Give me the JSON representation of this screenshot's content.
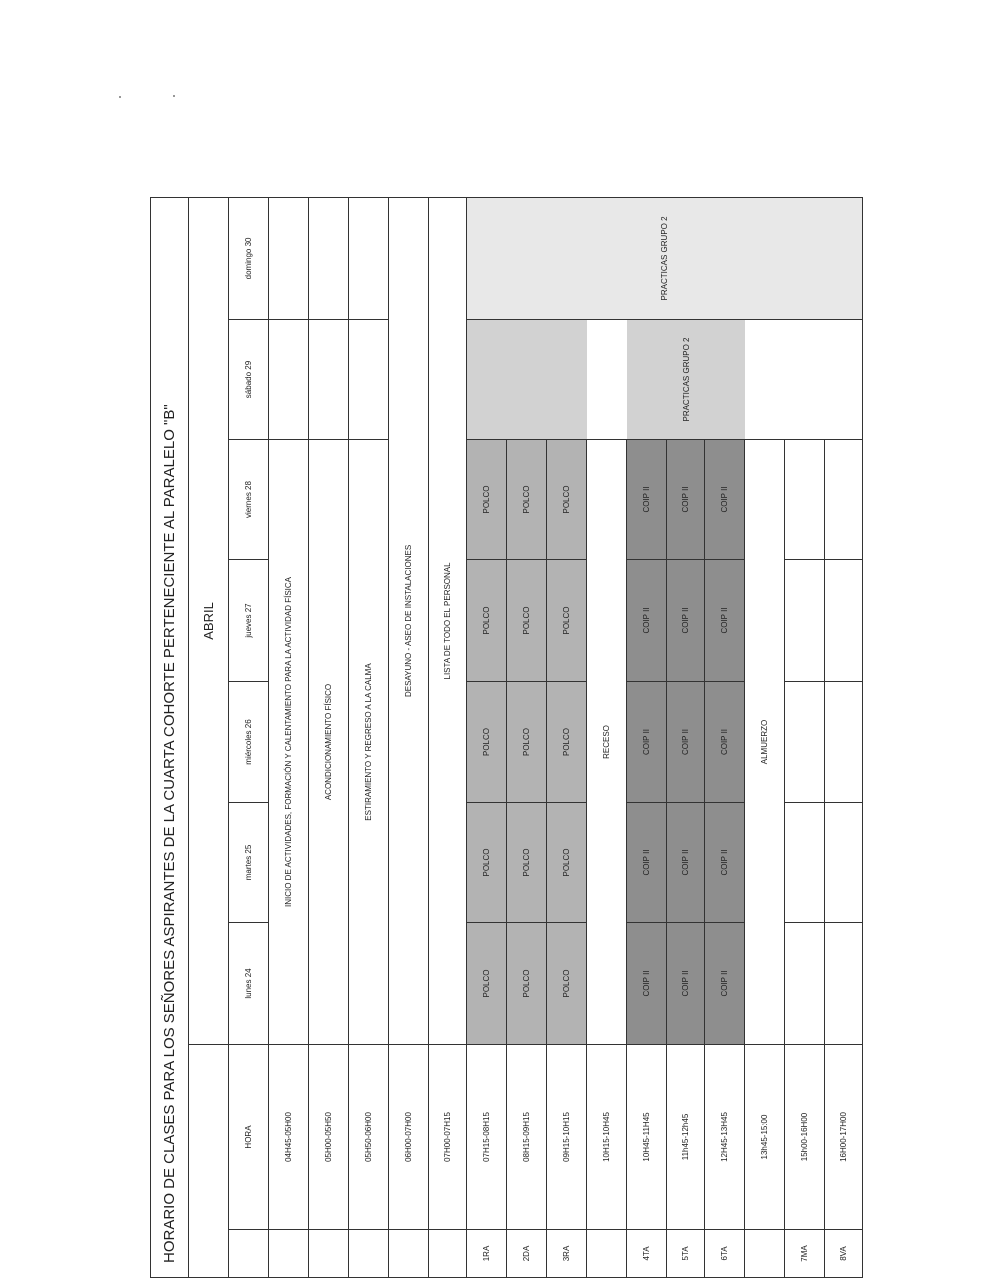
{
  "title": "HORARIO DE CLASES PARA LOS SEÑORES ASPIRANTES DE LA CUARTA COHORTE PERTENECIENTE AL PARALELO \"B\"",
  "month": "ABRIL",
  "header": {
    "hora": "HORA",
    "days": [
      "lunes 24",
      "martes 25",
      "miércoles 26",
      "jueves 27",
      "viernes 28",
      "sábado 29",
      "domingo 30"
    ]
  },
  "rows": [
    {
      "period": "",
      "time": "04H45-05H00",
      "activity": "INICIO DE ACTIVIDADES, FORMACIÓN Y CALENTAMIENTO PARA LA ACTIVIDAD FÍSICA"
    },
    {
      "period": "",
      "time": "05H00-05H50",
      "activity": "ACONDICIONAMIENTO FÍSICO"
    },
    {
      "period": "",
      "time": "05H50-06H00",
      "activity": "ESTIRAMIENTO Y REGRESO A LA CALMA"
    },
    {
      "period": "",
      "time": "06H00-07H00",
      "activity": "DESAYUNO - ASEO DE INSTALACIONES"
    },
    {
      "period": "",
      "time": "07H00-07H15",
      "activity": "LISTA DE TODO EL PERSONAL"
    },
    {
      "period": "1RA",
      "time": "07H15-08H15",
      "subject": "POLCO"
    },
    {
      "period": "2DA",
      "time": "08H15-09H15",
      "subject": "POLCO"
    },
    {
      "period": "3RA",
      "time": "09H15-10H15",
      "subject": "POLCO"
    },
    {
      "period": "",
      "time": "10H15-10H45",
      "activity": "RECESO"
    },
    {
      "period": "4TA",
      "time": "10H45-11H45",
      "subject": "COIP II"
    },
    {
      "period": "5TA",
      "time": "11h45-12h45",
      "subject": "COIP II"
    },
    {
      "period": "6TA",
      "time": "12H45-13H45",
      "subject": "COIP II"
    },
    {
      "period": "",
      "time": "13h45-15:00",
      "activity": "ALMUERZO"
    },
    {
      "period": "7MA",
      "time": "15h00-16H00"
    },
    {
      "period": "8VA",
      "time": "16H00-17H00"
    }
  ],
  "weekend": {
    "saturday": "PRACTICAS GRUPO 2",
    "sunday": "PRACTICAS GRUPO 2"
  },
  "colors": {
    "polco": "#b3b3b3",
    "coip": "#8e8e8e",
    "saturday_shade": "#d2d2d2",
    "sunday_shade": "#e8e8e8"
  }
}
